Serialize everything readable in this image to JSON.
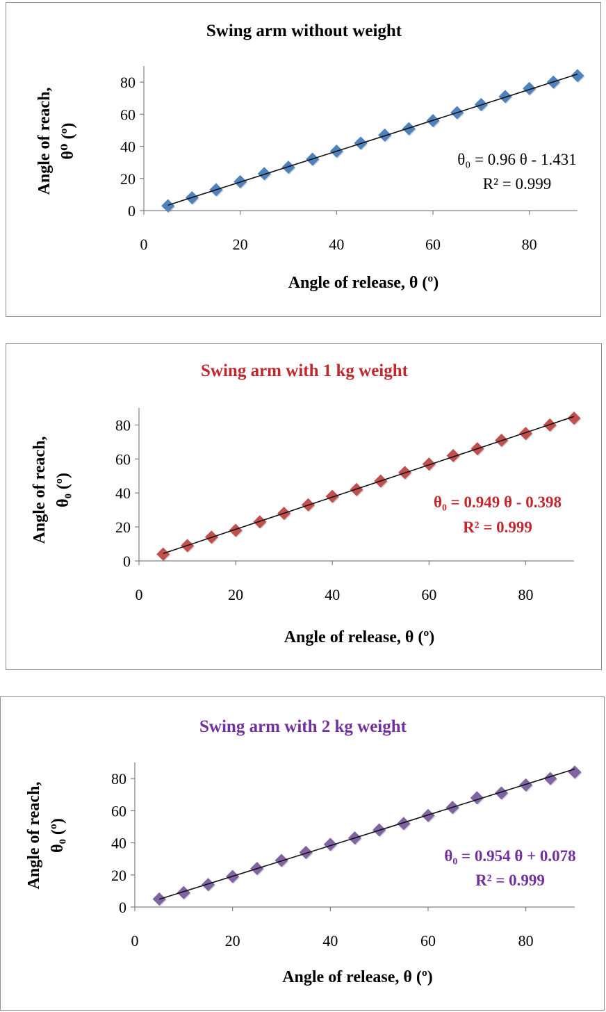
{
  "charts": [
    {
      "title": "Swing arm without weight",
      "xlabel": "Angle of release, θ (º)",
      "ylabel_line1": "Angle of reach,",
      "ylabel_line2": "θ⁰ (º)",
      "equation": "θ₀ = 0.96 θ - 1.431",
      "r_squared": "R² = 0.999",
      "title_color": "#000000",
      "marker_color": "#4f81bd",
      "equation_color": "#000000",
      "equation_bold": false
    },
    {
      "title": "Swing arm with 1 kg weight",
      "xlabel": "Angle of release, θ (º)",
      "ylabel_line1": "Angle of reach,",
      "ylabel_line2": "θ₀ (º)",
      "equation": "θ₀ = 0.949 θ - 0.398",
      "r_squared": "R² = 0.999",
      "title_color": "#c0282d",
      "marker_color": "#c0504d",
      "equation_color": "#c0282d",
      "equation_bold": true
    },
    {
      "title": "Swing arm with 2 kg weight",
      "xlabel": "Angle of release, θ (º)",
      "ylabel_line1": "Angle of reach,",
      "ylabel_line2": "θ₀ (º)",
      "equation": "θ₀ = 0.954 θ + 0.078",
      "r_squared": "R² = 0.999",
      "title_color": "#7030a0",
      "marker_color": "#8064a2",
      "equation_color": "#7030a0",
      "equation_bold": true
    }
  ],
  "chart_data": [
    {
      "type": "scatter",
      "title": "Swing arm without weight",
      "xlabel": "Angle of release, θ (º)",
      "ylabel": "Angle of reach, θ⁰ (º)",
      "xlim": [
        0,
        90
      ],
      "ylim": [
        0,
        90
      ],
      "xticks": [
        0,
        20,
        40,
        60,
        80
      ],
      "yticks": [
        0,
        20,
        40,
        60,
        80
      ],
      "grid": false,
      "x": [
        5,
        10,
        15,
        20,
        25,
        30,
        35,
        40,
        45,
        50,
        55,
        60,
        65,
        70,
        75,
        80,
        85,
        90
      ],
      "y": [
        3,
        8,
        13,
        18,
        23,
        27,
        32,
        37,
        42,
        47,
        51,
        56,
        61,
        66,
        71,
        76,
        80,
        84
      ],
      "trendline": {
        "slope": 0.96,
        "intercept": -1.431,
        "r2": 0.999
      }
    },
    {
      "type": "scatter",
      "title": "Swing arm with 1 kg weight",
      "xlabel": "Angle of release, θ (º)",
      "ylabel": "Angle of reach, θ₀ (º)",
      "xlim": [
        0,
        90
      ],
      "ylim": [
        0,
        90
      ],
      "xticks": [
        0,
        20,
        40,
        60,
        80
      ],
      "yticks": [
        0,
        20,
        40,
        60,
        80
      ],
      "grid": false,
      "x": [
        5,
        10,
        15,
        20,
        25,
        30,
        35,
        40,
        45,
        50,
        55,
        60,
        65,
        70,
        75,
        80,
        85,
        90
      ],
      "y": [
        4,
        9,
        14,
        18,
        23,
        28,
        33,
        38,
        42,
        47,
        52,
        57,
        62,
        66,
        71,
        75,
        80,
        84
      ],
      "trendline": {
        "slope": 0.949,
        "intercept": -0.398,
        "r2": 0.999
      }
    },
    {
      "type": "scatter",
      "title": "Swing arm with 2 kg weight",
      "xlabel": "Angle of release, θ (º)",
      "ylabel": "Angle of reach, θ₀ (º)",
      "xlim": [
        0,
        90
      ],
      "ylim": [
        0,
        90
      ],
      "xticks": [
        0,
        20,
        40,
        60,
        80
      ],
      "yticks": [
        0,
        20,
        40,
        60,
        80
      ],
      "grid": false,
      "x": [
        5,
        10,
        15,
        20,
        25,
        30,
        35,
        40,
        45,
        50,
        55,
        60,
        65,
        70,
        75,
        80,
        85,
        90
      ],
      "y": [
        5,
        9,
        14,
        19,
        24,
        29,
        34,
        39,
        43,
        48,
        52,
        57,
        62,
        68,
        71,
        76,
        80,
        84
      ],
      "trendline": {
        "slope": 0.954,
        "intercept": 0.078,
        "r2": 0.999
      }
    }
  ]
}
